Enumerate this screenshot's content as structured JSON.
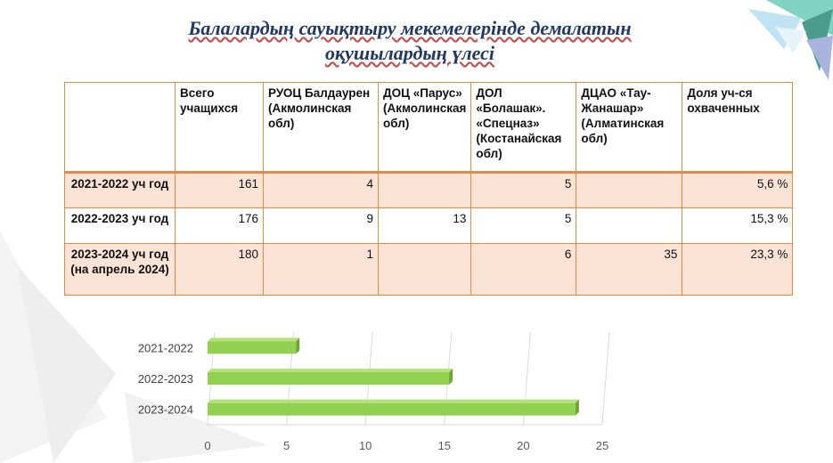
{
  "title_line1": "Балалардың сауықтыру мекемелерінде демалатын",
  "title_line2": "оқушылардың үлесі",
  "table": {
    "headers": [
      "",
      "Всего учащихся",
      "РУОЦ Балдаурен (Акмолинская обл)",
      "ДОЦ «Парус» (Акмолинская обл)",
      "ДОЛ «Болашак». «Спецназ» (Костанайская обл)",
      "ДЦАО «Тау-Жанашар» (Алматинская обл)",
      "Доля уч-ся охваченных"
    ],
    "rows": [
      [
        "2021-2022 уч год",
        "161",
        "4",
        "",
        "5",
        "",
        "5,6  %"
      ],
      [
        "2022-2023 уч год",
        "176",
        "9",
        "13",
        "5",
        "",
        "15,3 %"
      ],
      [
        "2023-2024 уч год (на апрель 2024)",
        "180",
        "1",
        "",
        "6",
        "35",
        "23,3 %"
      ]
    ]
  },
  "chart_data": {
    "type": "bar",
    "orientation": "horizontal",
    "categories": [
      "2021-2022",
      "2022-2023",
      "2023-2024"
    ],
    "values": [
      5.6,
      15.3,
      23.3
    ],
    "xlim": [
      0,
      25
    ],
    "xticks": [
      "0",
      "5",
      "10",
      "15",
      "20",
      "25"
    ],
    "bar_color": "#92d050",
    "grid": true
  }
}
